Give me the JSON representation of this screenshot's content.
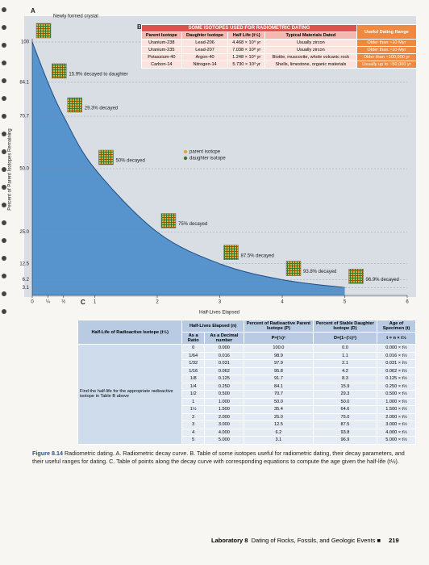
{
  "panel_a": {
    "label": "A",
    "y_label": "Percent of Parent Isotopes Remaining",
    "x_label": "Half-Lives Elapsed",
    "ylim": [
      0,
      100
    ],
    "yticks": [
      100,
      84.1,
      70.7,
      {
        "value": 50,
        "label": "50.0"
      },
      {
        "value": 25,
        "label": "25.0"
      },
      12.5,
      6.2,
      3.1
    ],
    "xlim": [
      0,
      6
    ],
    "xticks": [
      0,
      {
        "value": 0.25,
        "label": "¼"
      },
      {
        "value": 0.5,
        "label": "½"
      },
      1,
      2,
      3,
      4,
      5,
      6
    ],
    "points": {
      "x": [
        0,
        0.25,
        0.5,
        1,
        2,
        3,
        4,
        5
      ],
      "y": [
        100,
        84.1,
        70.7,
        50,
        25,
        12.5,
        6.2,
        3.1
      ]
    },
    "annotations": [
      "Newly formed crystal",
      "15.9% decayed to daughter",
      "29.3% decayed",
      "50% decayed",
      "75% decayed",
      "87.5% decayed",
      "93.8% decayed",
      "96.9% decayed"
    ],
    "legend": [
      {
        "name": "parent isotope",
        "color": "#e8a33a"
      },
      {
        "name": "daughter isotope",
        "color": "#3b7a2a"
      }
    ],
    "fill_color": "#3f86c9"
  },
  "panel_b": {
    "label": "B",
    "title": "SOME ISOTOPES USED FOR RADIOMETRIC DATING",
    "columns": [
      "Parent Isotope",
      "Daughter Isotope",
      "Half Life (t½)",
      "Typical Materials Dated",
      "Useful Dating Range"
    ],
    "rows": [
      [
        "Uranium-238",
        "Lead-206",
        "4.468 × 10⁹ yr",
        "Usually zircon",
        "Older than ~10 Myr"
      ],
      [
        "Uranium-235",
        "Lead-207",
        "7.038 × 10⁸ yr",
        "Usually zircon",
        "Older than ~10 Myr"
      ],
      [
        "Potassium-40",
        "Argon-40",
        "1.248 × 10⁹ yr",
        "Biotite, muscovite, whole volcanic rock",
        "Older than ~100,000 yr"
      ],
      [
        "Carbon-14",
        "Nitrogen-14",
        "5.730 × 10³ yr",
        "Shells, limestone, organic materials",
        "Usually up to ~50,000 yr"
      ]
    ]
  },
  "panel_c": {
    "label": "C",
    "columns": [
      "Half-Life of Radioactive Isotope (t½)",
      "Half-Lives Elapsed (n)",
      "Percent of Radioactive Parent Isotope (P)",
      "Percent of Stable Daughter Isotope (D)",
      "Age of Specimen (t)"
    ],
    "subcolumns": [
      "As a Ratio",
      "As a Decimal number"
    ],
    "formulas": [
      "P=(½)ⁿ",
      "D=(1−(½)ⁿ)",
      "t = n × t½"
    ],
    "note": "Find the half-life for the appropriate radioactive isotope in Table B above",
    "rows": [
      [
        "0",
        "0.000",
        "100.0",
        "0.0",
        "0.000 × t½"
      ],
      [
        "1/64",
        "0.016",
        "98.9",
        "1.1",
        "0.016 × t½"
      ],
      [
        "1/32",
        "0.031",
        "97.9",
        "2.1",
        "0.031 × t½"
      ],
      [
        "1/16",
        "0.062",
        "95.8",
        "4.2",
        "0.062 × t½"
      ],
      [
        "1/8",
        "0.125",
        "91.7",
        "8.3",
        "0.125 × t½"
      ],
      [
        "1/4",
        "0.250",
        "84.1",
        "15.9",
        "0.250 × t½"
      ],
      [
        "1/2",
        "0.500",
        "70.7",
        "29.3",
        "0.500 × t½"
      ],
      [
        "1",
        "1.000",
        "50.0",
        "50.0",
        "1.000 × t½"
      ],
      [
        "1½",
        "1.500",
        "35.4",
        "64.6",
        "1.500 × t½"
      ],
      [
        "2",
        "2.000",
        "25.0",
        "75.0",
        "2.000 × t½"
      ],
      [
        "3",
        "3.000",
        "12.5",
        "87.5",
        "3.000 × t½"
      ],
      [
        "4",
        "4.000",
        "6.2",
        "93.8",
        "4.000 × t½"
      ],
      [
        "5",
        "5.000",
        "3.1",
        "96.9",
        "5.000 × t½"
      ]
    ]
  },
  "caption": {
    "figure": "Figure 8.14",
    "text": "Radiometric dating. A. Radiometric decay curve. B. Table of some isotopes useful for radiometric dating, their decay parameters, and their useful ranges for dating. C. Table of points along the decay curve with corresponding equations to compute the age given the half-life (t½)."
  },
  "footer": {
    "lab": "Laboratory 8",
    "title": "Dating of Rocks, Fossils, and Geologic Events",
    "page": "219"
  }
}
